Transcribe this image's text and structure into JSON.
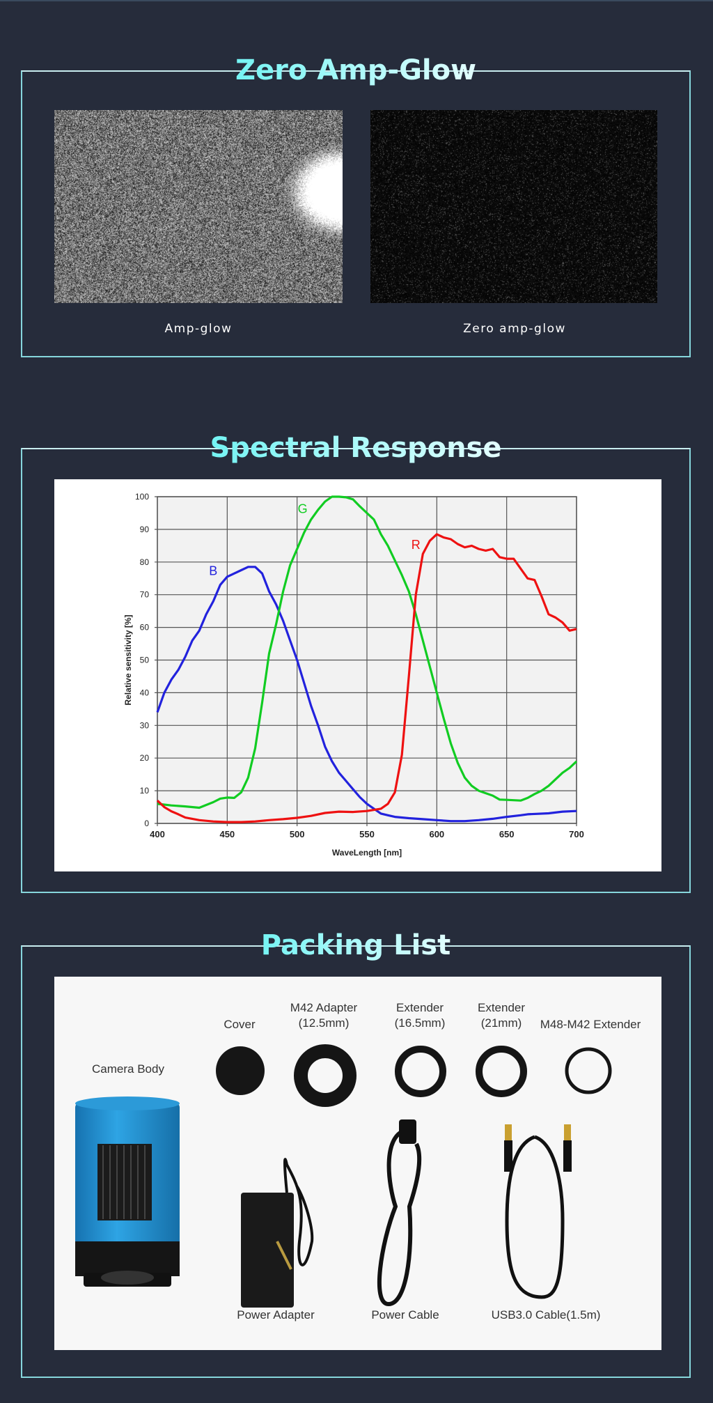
{
  "sections": {
    "amp_glow": {
      "title": "Zero Amp-Glow",
      "left_caption": "Amp-glow",
      "right_caption": "Zero amp-glow"
    },
    "spectral": {
      "title": "Spectral Response"
    },
    "packing": {
      "title": "Packing List",
      "items": [
        {
          "label": "Camera Body"
        },
        {
          "label": "Cover"
        },
        {
          "label": "M42 Adapter",
          "sub": "(12.5mm)"
        },
        {
          "label": "Extender",
          "sub": "(16.5mm)"
        },
        {
          "label": "Extender",
          "sub": "(21mm)"
        },
        {
          "label": "M48-M42 Extender"
        },
        {
          "label": "Power Adapter"
        },
        {
          "label": "Power Cable"
        },
        {
          "label": "USB3.0 Cable(1.5m)"
        }
      ]
    }
  },
  "colors": {
    "background": "#262c3b",
    "title_accent": "#6ff3f3",
    "border": "#86d6dc",
    "camera_blue": "#1e8fd0"
  },
  "chart_data": {
    "type": "line",
    "xlabel": "WaveLength [nm]",
    "ylabel": "Relative sensitivity [%]",
    "xlim": [
      400,
      700
    ],
    "ylim": [
      0,
      100
    ],
    "xticks": [
      400,
      450,
      500,
      550,
      600,
      650,
      700
    ],
    "yticks": [
      0,
      10,
      20,
      30,
      40,
      50,
      60,
      70,
      80,
      90,
      100
    ],
    "grid": true,
    "series": [
      {
        "name": "B",
        "color": "#2222dd",
        "label_at": [
          440,
          76
        ],
        "x": [
          400,
          405,
          410,
          415,
          420,
          425,
          430,
          435,
          440,
          445,
          450,
          455,
          460,
          465,
          470,
          475,
          480,
          485,
          490,
          495,
          500,
          505,
          510,
          515,
          520,
          525,
          530,
          535,
          540,
          545,
          550,
          555,
          560,
          565,
          570,
          580,
          590,
          600,
          610,
          620,
          630,
          640,
          650,
          660,
          665,
          680,
          690,
          700
        ],
        "y": [
          34,
          40,
          44,
          47,
          51,
          56,
          59,
          64,
          68,
          73,
          75.5,
          76.5,
          77.5,
          78.5,
          78.5,
          76.5,
          71,
          67,
          62,
          56,
          50,
          43,
          36,
          30,
          23.5,
          19,
          15.5,
          13,
          10.5,
          8,
          6,
          4.5,
          3,
          2.5,
          2,
          1.6,
          1.3,
          1,
          0.7,
          0.7,
          1,
          1.4,
          2,
          2.5,
          2.8,
          3.1,
          3.6,
          3.8
        ]
      },
      {
        "name": "G",
        "color": "#11cc22",
        "label_at": [
          504,
          95
        ],
        "x": [
          400,
          410,
          420,
          430,
          440,
          445,
          450,
          455,
          460,
          465,
          470,
          475,
          480,
          485,
          490,
          495,
          500,
          505,
          510,
          515,
          520,
          525,
          530,
          535,
          540,
          545,
          550,
          555,
          560,
          565,
          570,
          575,
          580,
          585,
          590,
          595,
          600,
          605,
          610,
          615,
          620,
          625,
          630,
          640,
          645,
          650,
          660,
          665,
          670,
          675,
          680,
          685,
          690,
          695,
          700
        ],
        "y": [
          6,
          5.5,
          5.2,
          4.8,
          6.5,
          7.6,
          7.9,
          7.8,
          9.5,
          14,
          23,
          37,
          52,
          61,
          71,
          79,
          84,
          89,
          93,
          96,
          98.5,
          100,
          100,
          99.8,
          99.2,
          97,
          95,
          93,
          88.5,
          85,
          80.5,
          76,
          71,
          64,
          56,
          48,
          40,
          32,
          24.5,
          18.5,
          14,
          11.5,
          10,
          8.5,
          7.3,
          7.2,
          7,
          7.8,
          9,
          10,
          11.5,
          13.5,
          15.5,
          17,
          19
        ]
      },
      {
        "name": "R",
        "color": "#ee1111",
        "label_at": [
          585,
          84
        ],
        "x": [
          400,
          405,
          410,
          415,
          420,
          430,
          440,
          450,
          460,
          470,
          480,
          490,
          500,
          510,
          520,
          530,
          540,
          550,
          560,
          565,
          570,
          575,
          580,
          585,
          590,
          595,
          600,
          605,
          610,
          615,
          620,
          625,
          630,
          635,
          640,
          645,
          650,
          655,
          660,
          665,
          670,
          675,
          680,
          685,
          690,
          695,
          700
        ],
        "y": [
          7,
          5,
          3.7,
          2.8,
          1.8,
          1,
          0.6,
          0.4,
          0.4,
          0.6,
          1,
          1.3,
          1.7,
          2.3,
          3.2,
          3.6,
          3.5,
          3.8,
          4.5,
          6,
          9.5,
          21,
          45,
          70,
          82.5,
          86.5,
          88.5,
          87.5,
          87,
          85.5,
          84.5,
          85,
          84,
          83.5,
          84,
          81.5,
          81,
          81,
          78,
          75,
          74.5,
          69.5,
          64,
          63,
          61.5,
          59,
          59.5
        ]
      }
    ]
  }
}
